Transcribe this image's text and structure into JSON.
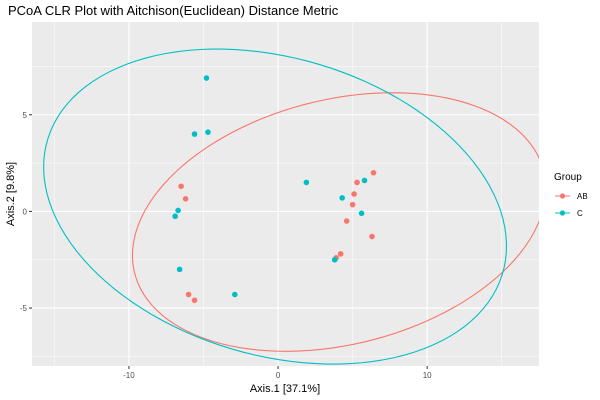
{
  "chart_data": {
    "type": "scatter",
    "title": "PCoA CLR Plot with Aitchison(Euclidean) Distance Metric",
    "xlabel": "Axis.1   [37.1%]",
    "ylabel": "Axis.2   [9.8%]",
    "xlim": [
      -16.5,
      17.5
    ],
    "ylim": [
      -8,
      9.8
    ],
    "x_ticks": [
      -10,
      0,
      10
    ],
    "y_ticks": [
      -5,
      0,
      5
    ],
    "x_tick_labels": [
      "-10",
      "0",
      "10"
    ],
    "y_tick_labels": [
      "-5",
      "0",
      "5"
    ],
    "grid": true,
    "legend": {
      "title": "Group",
      "position": "right"
    },
    "series": [
      {
        "name": "AB",
        "color": "#F8766D",
        "points": [
          [
            6.4,
            2.0
          ],
          [
            5.3,
            1.5
          ],
          [
            5.1,
            0.9
          ],
          [
            5.0,
            0.35
          ],
          [
            4.6,
            -0.5
          ],
          [
            6.3,
            -1.3
          ],
          [
            4.2,
            -2.2
          ],
          [
            3.9,
            -2.4
          ],
          [
            -6.5,
            1.3
          ],
          [
            -6.2,
            0.65
          ],
          [
            -6.0,
            -4.3
          ],
          [
            -5.6,
            -4.6
          ]
        ],
        "ellipse": {
          "center": [
            4.1,
            -0.55
          ],
          "semi_axes": [
            14.0,
            6.4
          ],
          "angle_deg": 9
        }
      },
      {
        "name": "C",
        "color": "#00BFC4",
        "points": [
          [
            -4.8,
            6.9
          ],
          [
            -4.7,
            4.1
          ],
          [
            -5.6,
            4.0
          ],
          [
            1.9,
            1.5
          ],
          [
            5.8,
            1.6
          ],
          [
            4.3,
            0.7
          ],
          [
            5.6,
            -0.1
          ],
          [
            3.8,
            -2.5
          ],
          [
            -6.7,
            0.05
          ],
          [
            -6.9,
            -0.25
          ],
          [
            -6.6,
            -3.0
          ],
          [
            -2.9,
            -4.3
          ]
        ],
        "ellipse": {
          "center": [
            -0.2,
            0.25
          ],
          "semi_axes": [
            15.7,
            7.8
          ],
          "angle_deg": -10
        }
      }
    ]
  }
}
